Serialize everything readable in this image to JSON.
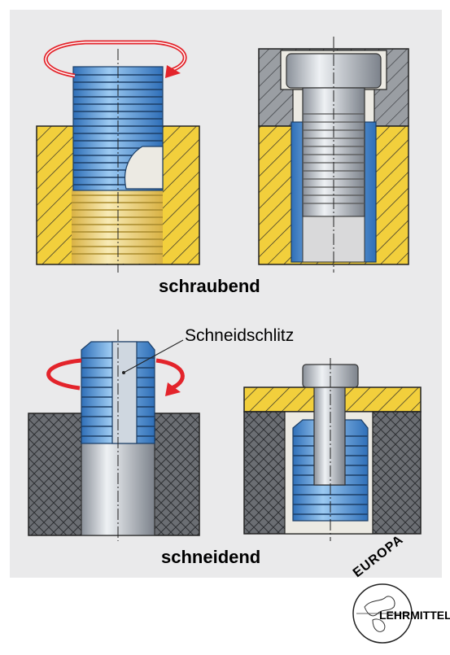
{
  "labels": {
    "top_caption": "schraubend",
    "slot_callout": "Schneidschlitz",
    "bottom_caption": "schneidend"
  },
  "logo": {
    "top_text": "EUROPA",
    "bottom_text": "LEHRMITTEL"
  },
  "colors": {
    "panel_bg": "#eaeaeb",
    "brass": "#f2cf3c",
    "steel_blue": "#5a9ad6",
    "gray_mesh": "#6b6e73",
    "arrow_red": "#e3242b"
  }
}
